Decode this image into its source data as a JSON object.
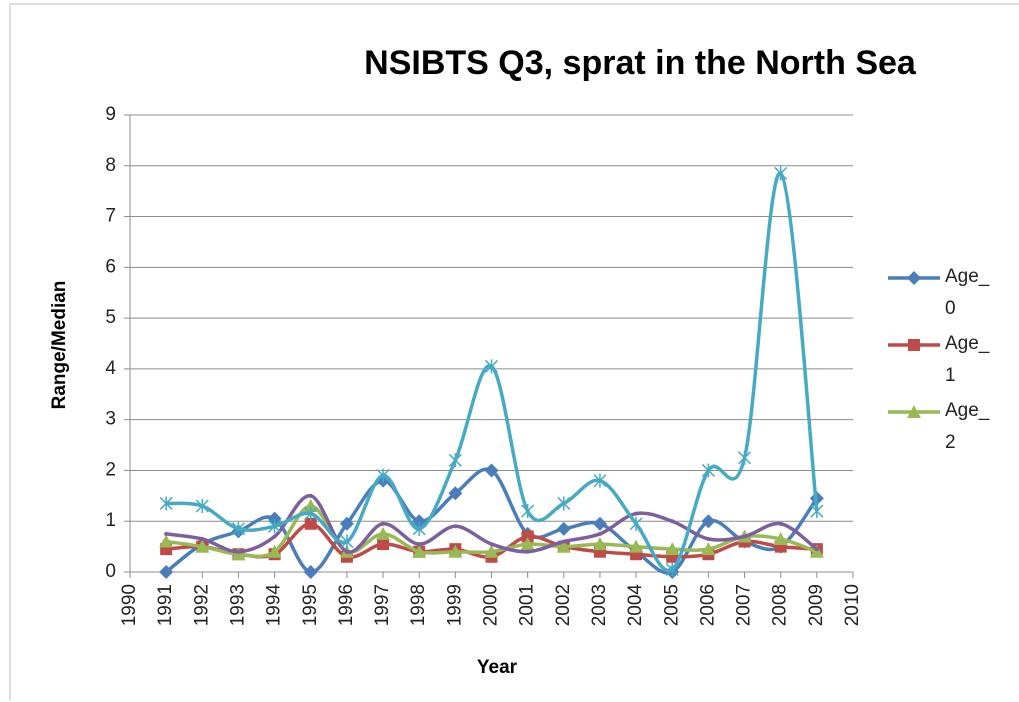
{
  "chart_data": {
    "type": "line",
    "title": "NSIBTS Q3, sprat in the North Sea",
    "x_label": "Year",
    "y_label": "Range/Median",
    "x": [
      1991,
      1992,
      1993,
      1994,
      1995,
      1996,
      1997,
      1998,
      1999,
      2000,
      2001,
      2002,
      2003,
      2004,
      2005,
      2006,
      2007,
      2008,
      2009
    ],
    "xlim": [
      1990,
      2010
    ],
    "xticks": [
      1990,
      1991,
      1992,
      1993,
      1994,
      1995,
      1996,
      1997,
      1998,
      1999,
      2000,
      2001,
      2002,
      2003,
      2004,
      2005,
      2006,
      2007,
      2008,
      2009,
      2010
    ],
    "ylim": [
      0,
      9
    ],
    "yticks": [
      0,
      1,
      2,
      3,
      4,
      5,
      6,
      7,
      8,
      9
    ],
    "grid": true,
    "legend": "right",
    "smooth": true,
    "series": [
      {
        "name": "Age_0",
        "color": "#4a7ebb",
        "marker": "diamond",
        "values": [
          0,
          0.55,
          0.8,
          1.05,
          0,
          0.95,
          1.8,
          1.0,
          1.55,
          2.0,
          0.75,
          0.85,
          0.95,
          0.4,
          0,
          1.0,
          0.6,
          0.5,
          1.45
        ]
      },
      {
        "name": "Age_1",
        "color": "#be4b48",
        "marker": "square",
        "values": [
          0.45,
          0.5,
          0.35,
          0.35,
          0.95,
          0.3,
          0.55,
          0.4,
          0.45,
          0.3,
          0.7,
          0.5,
          0.4,
          0.35,
          0.3,
          0.35,
          0.6,
          0.5,
          0.45
        ]
      },
      {
        "name": "Age_2",
        "color": "#98b954",
        "marker": "triangle",
        "values": [
          0.6,
          0.5,
          0.35,
          0.4,
          1.3,
          0.4,
          0.75,
          0.4,
          0.4,
          0.4,
          0.55,
          0.5,
          0.55,
          0.5,
          0.45,
          0.45,
          0.7,
          0.65,
          0.4
        ]
      },
      {
        "color": "#7d5fa0",
        "marker": "none",
        "values": [
          0.75,
          0.65,
          0.4,
          0.7,
          1.5,
          0.4,
          0.95,
          0.55,
          0.9,
          0.55,
          0.4,
          0.6,
          0.75,
          1.15,
          1.0,
          0.65,
          0.7,
          0.95,
          0.45
        ]
      },
      {
        "color": "#46aac5",
        "marker": "star",
        "values": [
          1.35,
          1.3,
          0.85,
          0.9,
          1.15,
          0.6,
          1.9,
          0.85,
          2.2,
          4.05,
          1.2,
          1.35,
          1.8,
          0.95,
          0.05,
          2.0,
          2.25,
          7.85,
          1.2
        ]
      }
    ]
  }
}
